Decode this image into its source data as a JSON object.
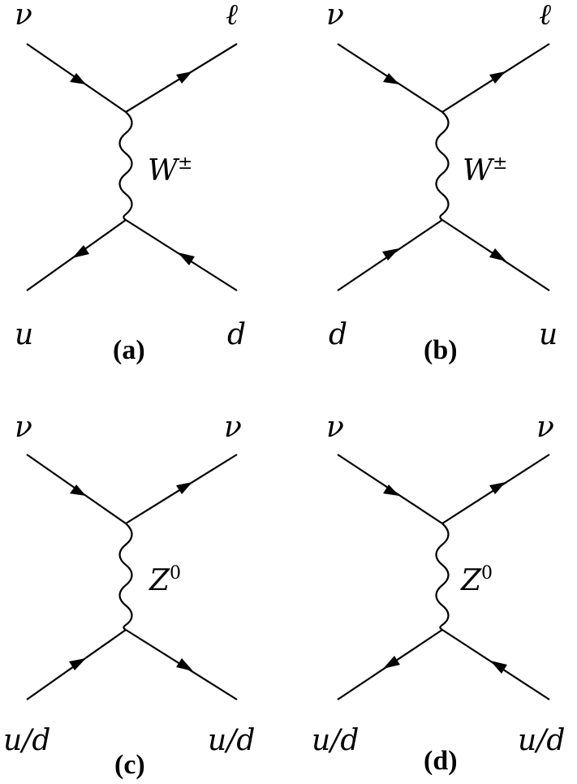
{
  "diagrams": [
    {
      "caption": "(a)",
      "boson": {
        "base": "W",
        "sup": "±"
      },
      "labels": {
        "top_left": "ν",
        "top_right": "ℓ",
        "bottom_left": "u",
        "bottom_right": "d"
      }
    },
    {
      "caption": "(b)",
      "boson": {
        "base": "W",
        "sup": "±"
      },
      "labels": {
        "top_left": "ν",
        "top_right": "ℓ",
        "bottom_left": "d",
        "bottom_right": "u"
      }
    },
    {
      "caption": "(c)",
      "boson": {
        "base": "Z",
        "sup": "0"
      },
      "labels": {
        "top_left": "ν",
        "top_right": "ν",
        "bottom_left": "u/d",
        "bottom_right": "u/d"
      }
    },
    {
      "caption": "(d)",
      "boson": {
        "base": "Z",
        "sup": "0"
      },
      "labels": {
        "top_left": "ν",
        "top_right": "ν",
        "bottom_left": "u/d",
        "bottom_right": "u/d"
      }
    }
  ]
}
